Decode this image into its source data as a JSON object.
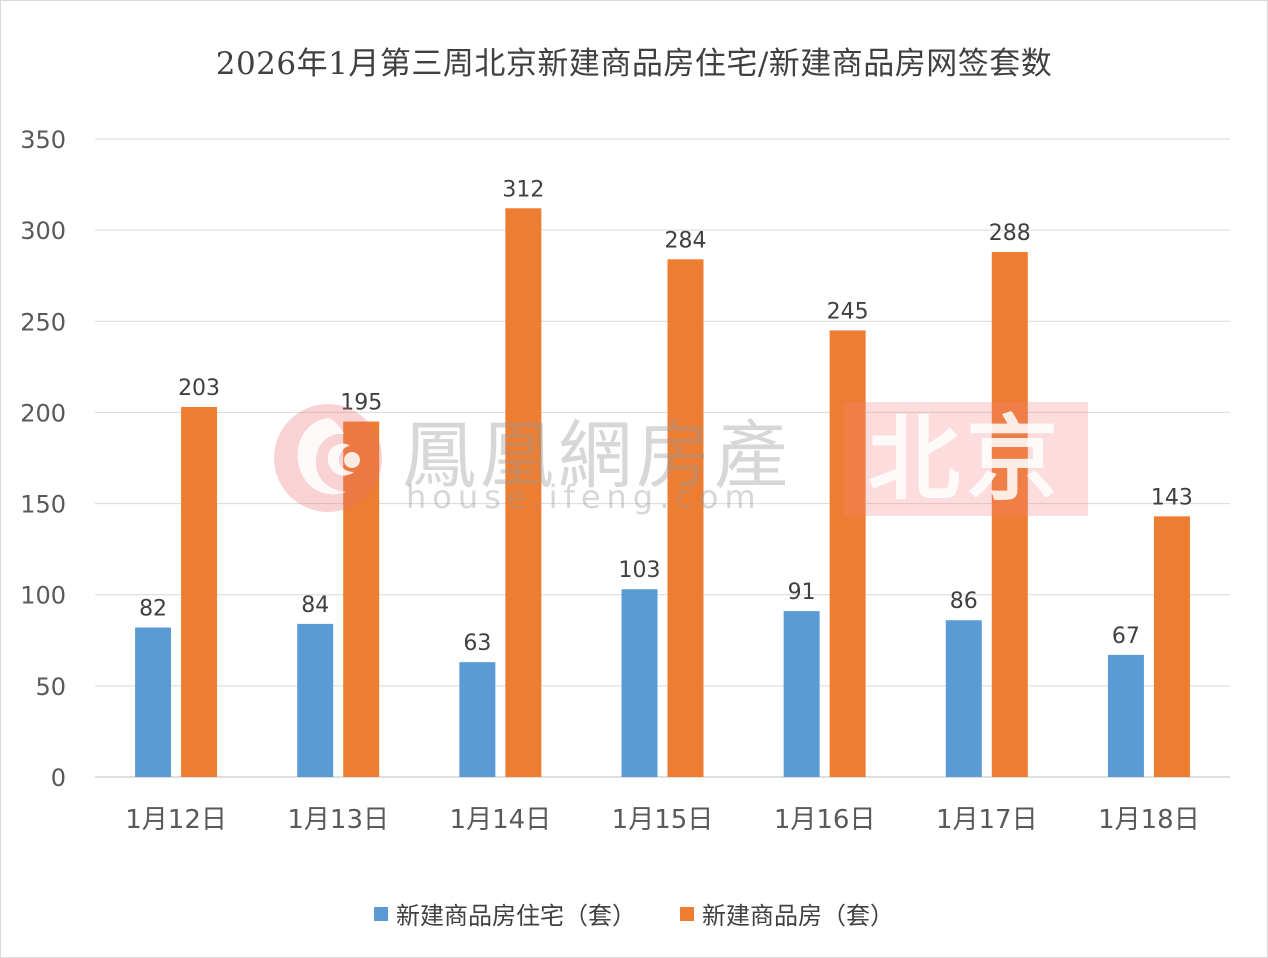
{
  "chart_data": {
    "type": "bar",
    "title": "2026年1月第三周北京新建商品房住宅/新建商品房网签套数",
    "categories": [
      "1月12日",
      "1月13日",
      "1月14日",
      "1月15日",
      "1月16日",
      "1月17日",
      "1月18日"
    ],
    "series": [
      {
        "name": "新建商品房住宅（套）",
        "color": "#5B9BD5",
        "values": [
          82,
          84,
          63,
          103,
          91,
          86,
          67
        ]
      },
      {
        "name": "新建商品房（套）",
        "color": "#ED7D31",
        "values": [
          203,
          195,
          312,
          284,
          245,
          288,
          143
        ]
      }
    ],
    "ylim": [
      0,
      350
    ],
    "yticks": [
      "0",
      "50",
      "100",
      "150",
      "200",
      "250",
      "300",
      "350"
    ],
    "grid": true,
    "legend_position": "bottom",
    "data_labels": true
  },
  "watermark": {
    "brand": "鳳凰網房產",
    "url": "house.ifeng.com",
    "city": "北京"
  }
}
